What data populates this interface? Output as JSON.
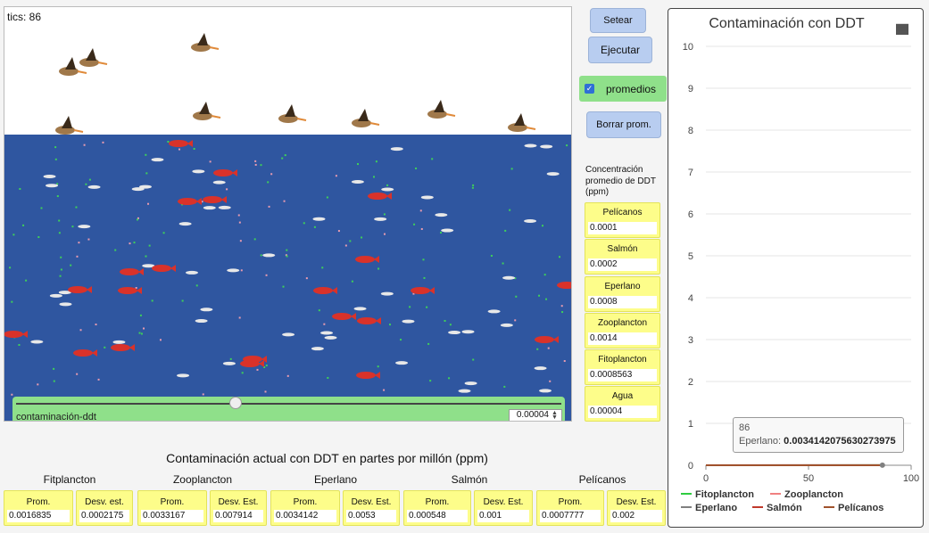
{
  "world": {
    "tics_label": "tics: 86"
  },
  "slider": {
    "name": "contaminación-ddt",
    "value": "0.00004",
    "fraction": 0.4
  },
  "buttons": {
    "setear": "Setear",
    "ejecutar": "Ejecutar",
    "promedios": "promedios",
    "borrar": "Borrar prom."
  },
  "concentration": {
    "title": "Concentración promedio de DDT (ppm)",
    "monitors": [
      {
        "label": "Pelícanos",
        "value": "0.0001"
      },
      {
        "label": "Salmón",
        "value": "0.0002"
      },
      {
        "label": "Eperlano",
        "value": "0.0008"
      },
      {
        "label": "Zooplancton",
        "value": "0.0014"
      },
      {
        "label": "Fitoplancton",
        "value": "0.0008563"
      },
      {
        "label": "Agua",
        "value": "0.00004"
      }
    ]
  },
  "bottom": {
    "title": "Contaminación actual con DDT en partes por millón (ppm)",
    "groups": [
      {
        "name": "Fitplancton",
        "prom_label": "Prom.",
        "prom": "0.0016835",
        "desv_label": "Desv. est.",
        "desv": "0.0002175"
      },
      {
        "name": "Zooplancton",
        "prom_label": "Prom.",
        "prom": "0.0033167",
        "desv_label": "Desv. Est.",
        "desv": "0.007914"
      },
      {
        "name": "Eperlano",
        "prom_label": "Prom.",
        "prom": "0.0034142",
        "desv_label": "Desv. Est.",
        "desv": "0.0053"
      },
      {
        "name": "Salmón",
        "prom_label": "Prom.",
        "prom": "0.000548",
        "desv_label": "Desv. Est.",
        "desv": "0.001"
      },
      {
        "name": "Pelícanos",
        "prom_label": "Prom.",
        "prom": "0.0007777",
        "desv_label": "Desv. Est.",
        "desv": "0.002"
      }
    ]
  },
  "tooltip": {
    "tick": "86",
    "series": "Eperlano:",
    "value": "0.0034142075630273975"
  },
  "chart_data": {
    "type": "line",
    "title": "Contaminación con DDT",
    "xlabel": "",
    "ylabel": "",
    "xlim": [
      0,
      100
    ],
    "ylim": [
      0,
      10
    ],
    "x_ticks": [
      "0",
      "50",
      "100"
    ],
    "y_ticks": [
      "0",
      "1",
      "2",
      "3",
      "4",
      "5",
      "6",
      "7",
      "8",
      "9",
      "10"
    ],
    "grid": true,
    "legend_position": "bottom",
    "series": [
      {
        "name": "Fitoplancton",
        "color": "#2ecc40",
        "x": [
          0,
          86
        ],
        "values": [
          0.0008,
          0.0017
        ]
      },
      {
        "name": "Zooplancton",
        "color": "#f08080",
        "x": [
          0,
          86
        ],
        "values": [
          0.0014,
          0.0033
        ]
      },
      {
        "name": "Eperlano",
        "color": "#808080",
        "x": [
          0,
          86
        ],
        "values": [
          0.0008,
          0.0034
        ]
      },
      {
        "name": "Salmón",
        "color": "#c0392b",
        "x": [
          0,
          86
        ],
        "values": [
          0.0002,
          0.0005
        ]
      },
      {
        "name": "Pelícanos",
        "color": "#a0522d",
        "x": [
          0,
          86
        ],
        "values": [
          0.0001,
          0.0008
        ]
      }
    ]
  }
}
